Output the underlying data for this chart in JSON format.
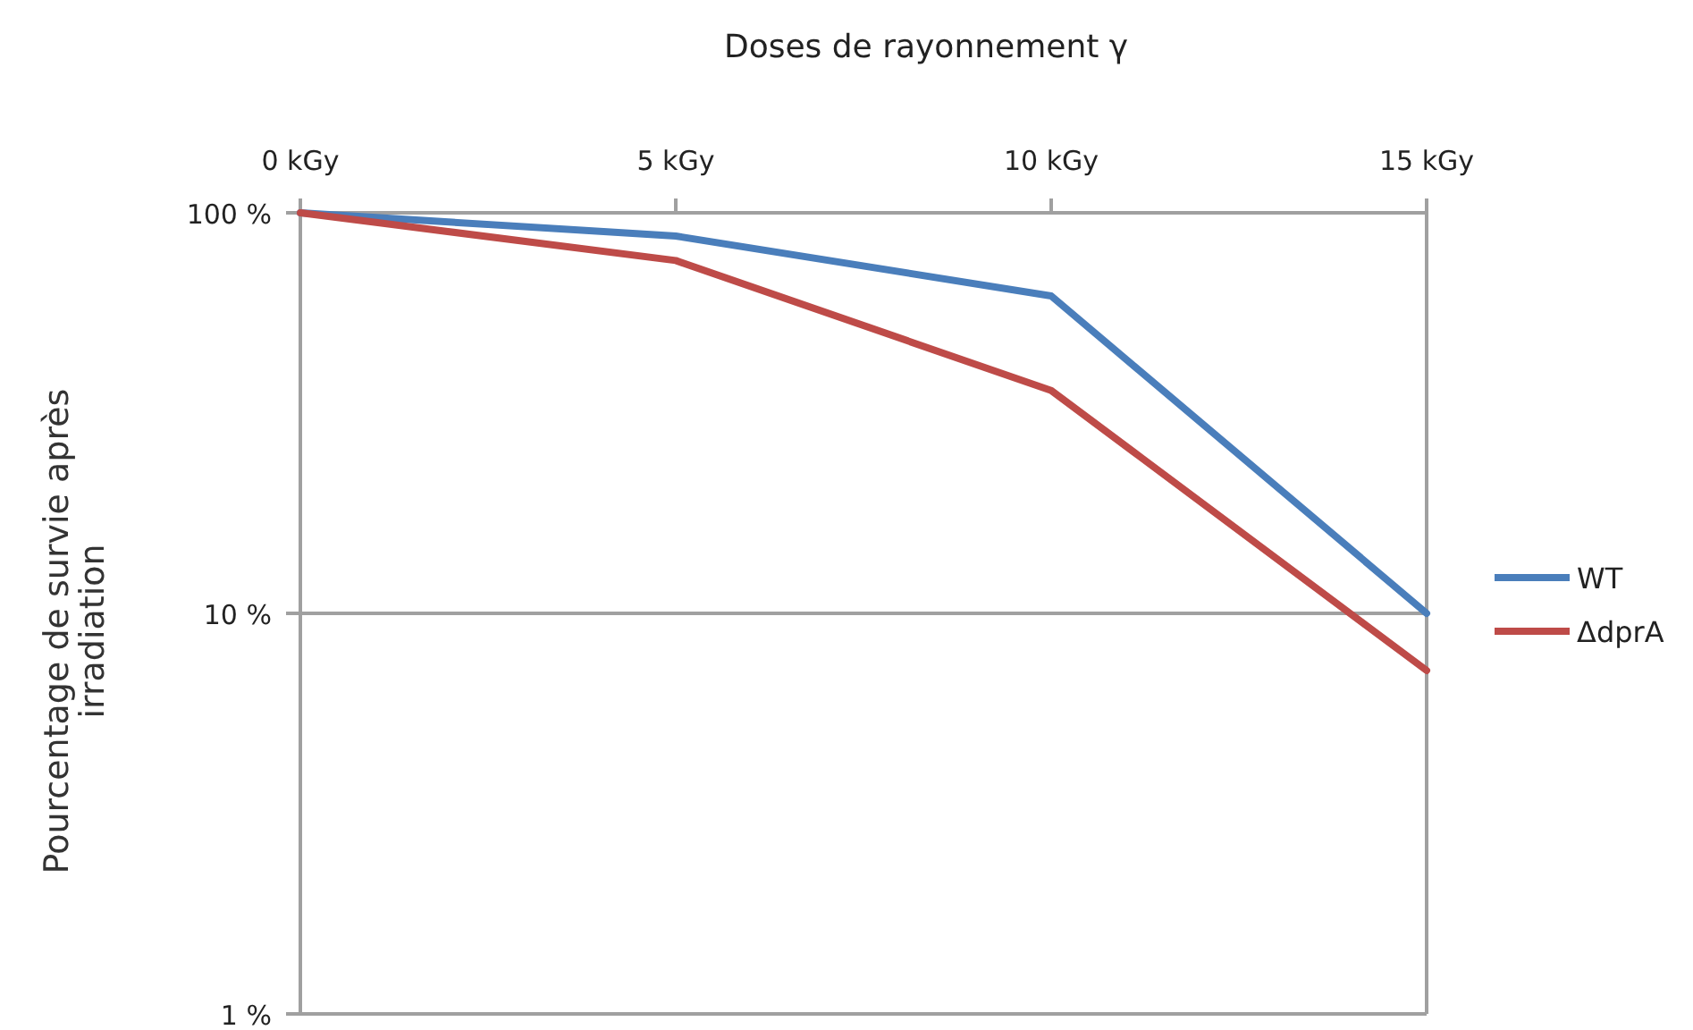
{
  "chart_data": {
    "type": "line",
    "title": "Doses de rayonnement γ",
    "ylabel": "Pourcentage de survie après irradiation",
    "x": [
      0,
      5,
      10,
      15
    ],
    "series": [
      {
        "name": "WT",
        "color": "#4a7ebb",
        "values": [
          100,
          87.5,
          62,
          10
        ]
      },
      {
        "name": "ΔdprA",
        "color": "#be4b48",
        "values": [
          100,
          76,
          36,
          7.2
        ]
      }
    ],
    "xlim": [
      0,
      15
    ],
    "xticks": [
      {
        "value": 0,
        "label": "0 kGy"
      },
      {
        "value": 5,
        "label": "5 kGy"
      },
      {
        "value": 10,
        "label": "10 kGy"
      },
      {
        "value": 15,
        "label": "15 kGy"
      }
    ],
    "ylim": [
      1,
      100
    ],
    "yticks": [
      {
        "value": 1,
        "label": "1 %"
      },
      {
        "value": 10,
        "label": "10 %"
      },
      {
        "value": 100,
        "label": "100 %"
      }
    ],
    "log": "y",
    "grid": "y",
    "legend": "right",
    "marker": "none",
    "line_style": "solid"
  }
}
